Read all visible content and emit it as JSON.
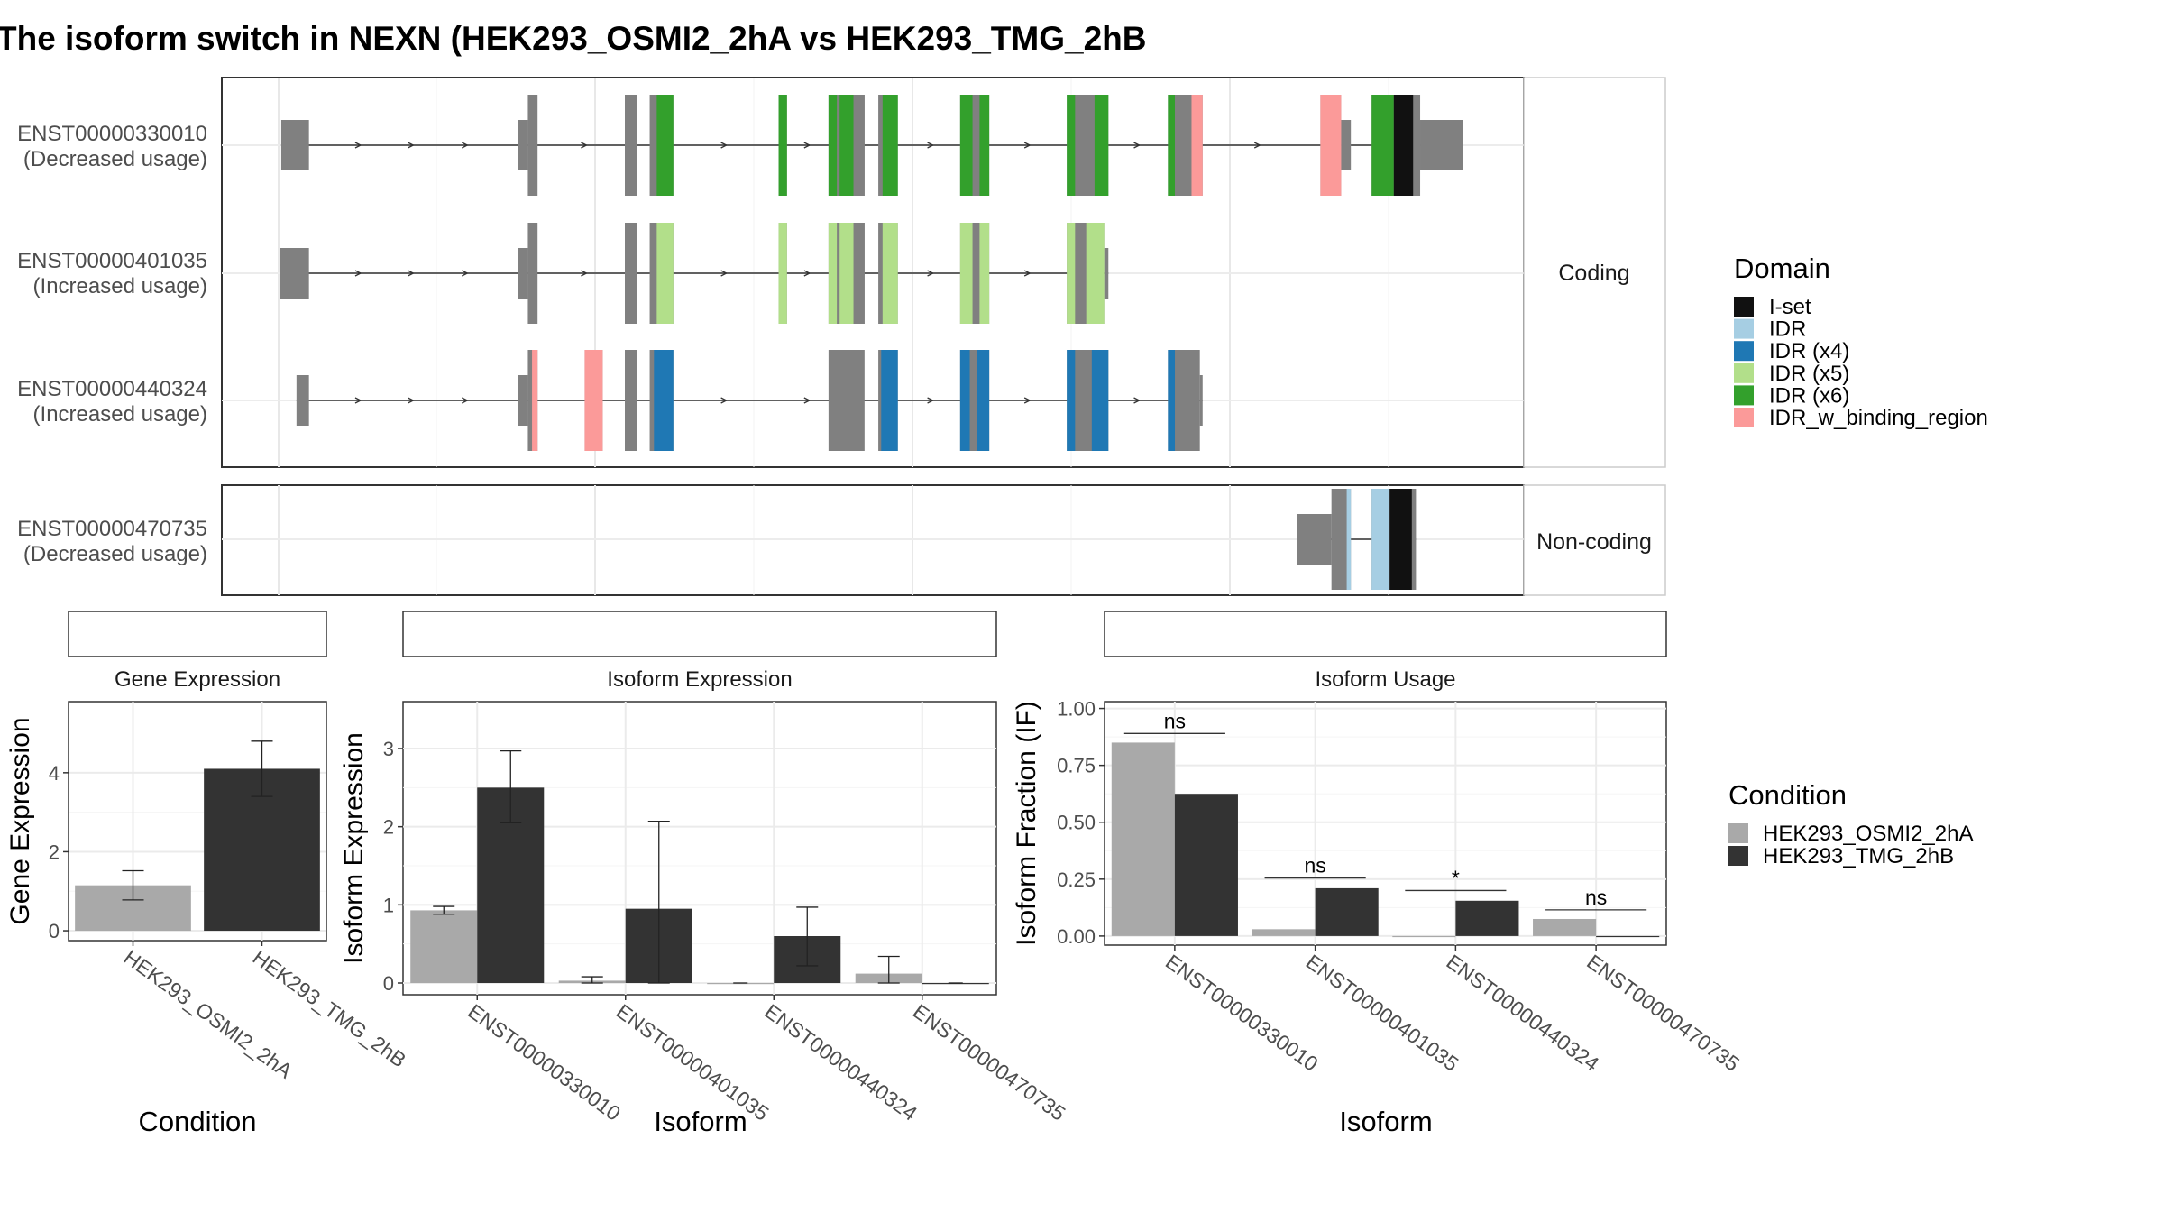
{
  "title": "The isoform switch in NEXN (HEK293_OSMI2_2hA vs HEK293_TMG_2hB",
  "colors": {
    "I-set": "#111111",
    "IDR": "#a6cee3",
    "IDR (x4)": "#1f78b4",
    "IDR (x5)": "#b2df8a",
    "IDR (x6)": "#33a02c",
    "IDR_w_binding_region": "#fb9a99",
    "exon": "#808080",
    "condA": "#a9a9a9",
    "condB": "#333333"
  },
  "panel_labels": {
    "coding": "Coding",
    "noncoding": "Non-coding"
  },
  "domain_legend": {
    "title": "Domain",
    "items": [
      "I-set",
      "IDR",
      "IDR (x4)",
      "IDR (x5)",
      "IDR (x6)",
      "IDR_w_binding_region"
    ]
  },
  "condition_legend": {
    "title": "Condition",
    "items": [
      "HEK293_OSMI2_2hA",
      "HEK293_TMG_2hB"
    ]
  },
  "transcripts": [
    {
      "id": "ENST00000330010",
      "usage": "(Decreased usage)",
      "panel": "coding"
    },
    {
      "id": "ENST00000401035",
      "usage": "(Increased usage)",
      "panel": "coding"
    },
    {
      "id": "ENST00000440324",
      "usage": "(Increased usage)",
      "panel": "coding"
    },
    {
      "id": "ENST00000470735",
      "usage": "(Decreased usage)",
      "panel": "noncoding"
    }
  ],
  "chart_data": [
    {
      "type": "bar",
      "title": "Gene Expression",
      "xlabel": "Condition",
      "ylabel": "Gene Expression",
      "categories": [
        "HEK293_OSMI2_2hA",
        "HEK293_TMG_2hB"
      ],
      "values": [
        1.15,
        4.1
      ],
      "errors": [
        [
          0.78,
          1.52
        ],
        [
          3.4,
          4.8
        ]
      ],
      "ylim": [
        -0.25,
        5.8
      ],
      "yticks": [
        0,
        2,
        4
      ]
    },
    {
      "type": "bar",
      "title": "Isoform Expression",
      "xlabel": "Isoform",
      "ylabel": "Isoform Expression",
      "categories": [
        "ENST00000330010",
        "ENST00000401035",
        "ENST00000440324",
        "ENST00000470735"
      ],
      "series": [
        {
          "name": "HEK293_OSMI2_2hA",
          "values": [
            0.93,
            0.03,
            0.0,
            0.12
          ],
          "errors": [
            [
              0.88,
              0.98
            ],
            [
              0.0,
              0.08
            ],
            null,
            [
              0.0,
              0.34
            ]
          ]
        },
        {
          "name": "HEK293_TMG_2hB",
          "values": [
            2.5,
            0.95,
            0.6,
            0.0
          ],
          "errors": [
            [
              2.05,
              2.97
            ],
            [
              0.0,
              2.07
            ],
            [
              0.22,
              0.97
            ],
            null
          ]
        }
      ],
      "ylim": [
        -0.15,
        3.6
      ],
      "yticks": [
        0,
        1,
        2,
        3
      ]
    },
    {
      "type": "bar",
      "title": "Isoform Usage",
      "xlabel": "Isoform",
      "ylabel": "Isoform Fraction (IF)",
      "categories": [
        "ENST00000330010",
        "ENST00000401035",
        "ENST00000440324",
        "ENST00000470735"
      ],
      "series": [
        {
          "name": "HEK293_OSMI2_2hA",
          "values": [
            0.85,
            0.03,
            0.0,
            0.075
          ]
        },
        {
          "name": "HEK293_TMG_2hB",
          "values": [
            0.625,
            0.21,
            0.155,
            0.0
          ]
        }
      ],
      "significance": [
        "ns",
        "ns",
        "*",
        "ns"
      ],
      "sig_height": [
        0.89,
        0.255,
        0.2,
        0.115
      ],
      "ylim": [
        -0.04,
        1.03
      ],
      "yticks": [
        "0.00",
        "0.25",
        "0.50",
        "0.75",
        "1.00"
      ]
    }
  ],
  "structure": [
    {
      "exons": [
        {
          "s": 203,
          "e": 223,
          "h": "s"
        },
        {
          "s": 374,
          "e": 381,
          "h": "s"
        },
        {
          "s": 381,
          "e": 388,
          "h": "c"
        },
        {
          "s": 451,
          "e": 460,
          "h": "c"
        },
        {
          "s": 469,
          "e": 486,
          "h": "c"
        },
        {
          "s": 562,
          "e": 568,
          "h": "c"
        },
        {
          "s": 598,
          "e": 624,
          "h": "c"
        },
        {
          "s": 634,
          "e": 648,
          "h": "c"
        },
        {
          "s": 693,
          "e": 714,
          "h": "c"
        },
        {
          "s": 770,
          "e": 800,
          "h": "c"
        },
        {
          "s": 843,
          "e": 868,
          "h": "c"
        },
        {
          "s": 953,
          "e": 968,
          "h": "c"
        },
        {
          "s": 968,
          "e": 975,
          "h": "s"
        },
        {
          "s": 990,
          "e": 1025,
          "h": "c"
        },
        {
          "s": 1025,
          "e": 1056,
          "h": "s"
        }
      ],
      "domains": [
        {
          "s": 469,
          "e": 474,
          "d": "exon"
        },
        {
          "s": 474,
          "e": 486,
          "d": "IDR (x6)"
        },
        {
          "s": 562,
          "e": 568,
          "d": "IDR (x6)"
        },
        {
          "s": 598,
          "e": 604,
          "d": "IDR (x6)"
        },
        {
          "s": 606,
          "e": 616,
          "d": "IDR (x6)"
        },
        {
          "s": 618,
          "e": 624,
          "d": "exon"
        },
        {
          "s": 634,
          "e": 637,
          "d": "exon"
        },
        {
          "s": 637,
          "e": 648,
          "d": "IDR (x6)"
        },
        {
          "s": 693,
          "e": 702,
          "d": "IDR (x6)"
        },
        {
          "s": 702,
          "e": 707,
          "d": "exon"
        },
        {
          "s": 707,
          "e": 714,
          "d": "IDR (x6)"
        },
        {
          "s": 770,
          "e": 776,
          "d": "IDR (x6)"
        },
        {
          "s": 776,
          "e": 790,
          "d": "exon"
        },
        {
          "s": 790,
          "e": 800,
          "d": "IDR (x6)"
        },
        {
          "s": 843,
          "e": 848,
          "d": "IDR (x6)"
        },
        {
          "s": 848,
          "e": 860,
          "d": "exon"
        },
        {
          "s": 860,
          "e": 868,
          "d": "IDR_w_binding_region"
        },
        {
          "s": 953,
          "e": 968,
          "d": "IDR_w_binding_region"
        },
        {
          "s": 990,
          "e": 1006,
          "d": "IDR (x6)"
        },
        {
          "s": 1006,
          "e": 1020,
          "d": "I-set"
        },
        {
          "s": 1020,
          "e": 1025,
          "d": "exon"
        }
      ],
      "arrows": [
        259,
        297,
        336,
        422,
        523,
        583,
        672,
        742,
        821,
        908
      ]
    },
    {
      "exons": [
        {
          "s": 202,
          "e": 223,
          "h": "s"
        },
        {
          "s": 374,
          "e": 381,
          "h": "s"
        },
        {
          "s": 381,
          "e": 388,
          "h": "c"
        },
        {
          "s": 451,
          "e": 460,
          "h": "c"
        },
        {
          "s": 469,
          "e": 486,
          "h": "c"
        },
        {
          "s": 562,
          "e": 568,
          "h": "c"
        },
        {
          "s": 598,
          "e": 624,
          "h": "c"
        },
        {
          "s": 634,
          "e": 648,
          "h": "c"
        },
        {
          "s": 693,
          "e": 714,
          "h": "c"
        },
        {
          "s": 770,
          "e": 797,
          "h": "c"
        },
        {
          "s": 797,
          "e": 800,
          "h": "s"
        }
      ],
      "domains": [
        {
          "s": 469,
          "e": 474,
          "d": "exon"
        },
        {
          "s": 474,
          "e": 486,
          "d": "IDR (x5)"
        },
        {
          "s": 562,
          "e": 568,
          "d": "IDR (x5)"
        },
        {
          "s": 598,
          "e": 604,
          "d": "IDR (x5)"
        },
        {
          "s": 606,
          "e": 616,
          "d": "IDR (x5)"
        },
        {
          "s": 618,
          "e": 624,
          "d": "exon"
        },
        {
          "s": 634,
          "e": 637,
          "d": "exon"
        },
        {
          "s": 637,
          "e": 648,
          "d": "IDR (x5)"
        },
        {
          "s": 693,
          "e": 702,
          "d": "IDR (x5)"
        },
        {
          "s": 702,
          "e": 707,
          "d": "exon"
        },
        {
          "s": 707,
          "e": 714,
          "d": "IDR (x5)"
        },
        {
          "s": 770,
          "e": 776,
          "d": "IDR (x5)"
        },
        {
          "s": 776,
          "e": 784,
          "d": "exon"
        },
        {
          "s": 784,
          "e": 797,
          "d": "IDR (x5)"
        }
      ],
      "arrows": [
        259,
        297,
        336,
        422,
        523,
        583,
        672,
        742
      ]
    },
    {
      "exons": [
        {
          "s": 214,
          "e": 223,
          "h": "s"
        },
        {
          "s": 374,
          "e": 381,
          "h": "s"
        },
        {
          "s": 381,
          "e": 388,
          "h": "c"
        },
        {
          "s": 422,
          "e": 435,
          "h": "c"
        },
        {
          "s": 451,
          "e": 460,
          "h": "c"
        },
        {
          "s": 469,
          "e": 486,
          "h": "c"
        },
        {
          "s": 598,
          "e": 624,
          "h": "c"
        },
        {
          "s": 634,
          "e": 648,
          "h": "c"
        },
        {
          "s": 693,
          "e": 714,
          "h": "c"
        },
        {
          "s": 770,
          "e": 800,
          "h": "c"
        },
        {
          "s": 843,
          "e": 866,
          "h": "c"
        },
        {
          "s": 866,
          "e": 868,
          "h": "s"
        }
      ],
      "domains": [
        {
          "s": 384,
          "e": 388,
          "d": "IDR_w_binding_region"
        },
        {
          "s": 422,
          "e": 435,
          "d": "IDR_w_binding_region"
        },
        {
          "s": 469,
          "e": 472,
          "d": "exon"
        },
        {
          "s": 472,
          "e": 486,
          "d": "IDR (x4)"
        },
        {
          "s": 634,
          "e": 636,
          "d": "exon"
        },
        {
          "s": 636,
          "e": 648,
          "d": "IDR (x4)"
        },
        {
          "s": 693,
          "e": 700,
          "d": "IDR (x4)"
        },
        {
          "s": 700,
          "e": 705,
          "d": "exon"
        },
        {
          "s": 705,
          "e": 714,
          "d": "IDR (x4)"
        },
        {
          "s": 770,
          "e": 776,
          "d": "IDR (x4)"
        },
        {
          "s": 776,
          "e": 788,
          "d": "exon"
        },
        {
          "s": 788,
          "e": 800,
          "d": "IDR (x4)"
        },
        {
          "s": 843,
          "e": 848,
          "d": "IDR (x4)"
        }
      ],
      "arrows": [
        259,
        297,
        336,
        523,
        583,
        672,
        742,
        821
      ]
    },
    {
      "exons": [
        {
          "s": 936,
          "e": 961,
          "h": "s"
        },
        {
          "s": 961,
          "e": 975,
          "h": "c"
        },
        {
          "s": 990,
          "e": 1022,
          "h": "c"
        }
      ],
      "domains": [
        {
          "s": 972,
          "e": 975,
          "d": "IDR"
        },
        {
          "s": 990,
          "e": 1003,
          "d": "IDR"
        },
        {
          "s": 1003,
          "e": 1019,
          "d": "I-set"
        }
      ],
      "arrows": []
    }
  ]
}
